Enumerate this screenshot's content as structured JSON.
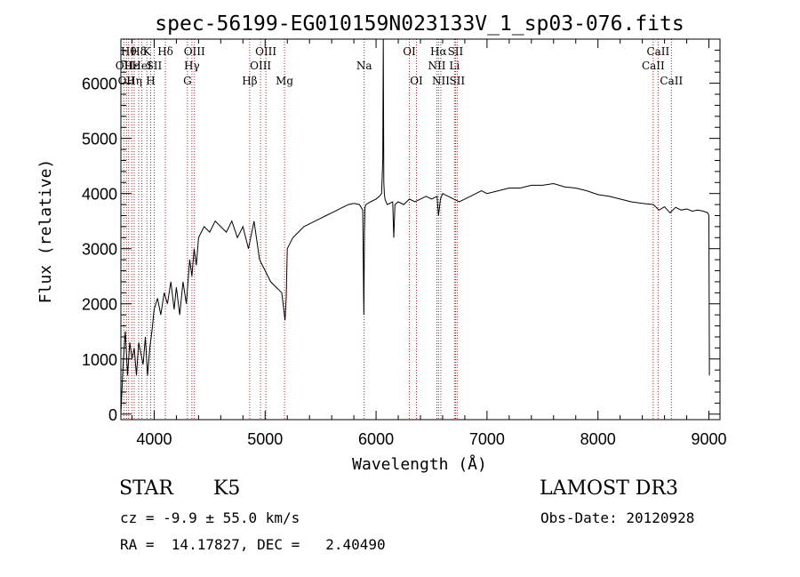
{
  "chart_data": {
    "type": "line",
    "title": "spec-56199-EG010159N023133V_1_sp03-076.fits",
    "xlabel": "Wavelength (Å)",
    "ylabel": "Flux (relative)",
    "xlim": [
      3700,
      9100
    ],
    "ylim": [
      -100,
      6800
    ],
    "xticks": [
      4000,
      5000,
      6000,
      7000,
      8000,
      9000
    ],
    "yticks": [
      0,
      1000,
      2000,
      3000,
      4000,
      5000,
      6000
    ],
    "grid": false,
    "line_color": "#000000",
    "marker_color": "#b22222",
    "series": [
      {
        "name": "flux",
        "x": [
          3700,
          3720,
          3740,
          3760,
          3780,
          3800,
          3820,
          3840,
          3860,
          3880,
          3900,
          3920,
          3940,
          3960,
          3980,
          4000,
          4030,
          4060,
          4090,
          4120,
          4150,
          4180,
          4200,
          4230,
          4260,
          4290,
          4320,
          4340,
          4360,
          4380,
          4400,
          4450,
          4500,
          4550,
          4600,
          4650,
          4700,
          4750,
          4800,
          4850,
          4900,
          4950,
          5000,
          5050,
          5100,
          5150,
          5180,
          5190,
          5200,
          5250,
          5300,
          5350,
          5400,
          5450,
          5500,
          5550,
          5600,
          5650,
          5700,
          5750,
          5800,
          5850,
          5880,
          5890,
          5895,
          5900,
          5910,
          5950,
          6000,
          6030,
          6050,
          6060,
          6065,
          6070,
          6075,
          6080,
          6090,
          6100,
          6150,
          6160,
          6170,
          6200,
          6250,
          6300,
          6350,
          6400,
          6450,
          6500,
          6550,
          6563,
          6580,
          6600,
          6650,
          6700,
          6750,
          6800,
          6850,
          6900,
          6950,
          7000,
          7100,
          7200,
          7300,
          7400,
          7500,
          7600,
          7700,
          7800,
          7900,
          8000,
          8100,
          8200,
          8300,
          8400,
          8500,
          8550,
          8600,
          8650,
          8700,
          8750,
          8800,
          8850,
          8900,
          8950,
          8990,
          9000,
          9005
        ],
        "values": [
          0,
          900,
          1500,
          700,
          1300,
          1000,
          1200,
          700,
          1300,
          1100,
          900,
          1400,
          700,
          1200,
          1500,
          1900,
          2100,
          1800,
          2200,
          2000,
          2400,
          1900,
          2300,
          1800,
          2400,
          2000,
          2800,
          2500,
          3000,
          2700,
          3200,
          3400,
          3300,
          3500,
          3400,
          3300,
          3500,
          3200,
          3400,
          3000,
          3500,
          2800,
          2600,
          2400,
          2300,
          2200,
          1700,
          2100,
          3000,
          3200,
          3300,
          3400,
          3450,
          3500,
          3550,
          3600,
          3650,
          3700,
          3750,
          3800,
          3820,
          3800,
          3700,
          1800,
          3300,
          3750,
          3800,
          3850,
          3900,
          3950,
          4000,
          4600,
          6800,
          4200,
          4000,
          3900,
          3850,
          3800,
          3850,
          3200,
          3800,
          3850,
          3800,
          3900,
          3850,
          3900,
          3950,
          3900,
          3950,
          3600,
          3900,
          4000,
          3950,
          3900,
          3850,
          3900,
          3950,
          4000,
          4050,
          4000,
          4050,
          4100,
          4100,
          4150,
          4150,
          4180,
          4120,
          4100,
          4050,
          3980,
          3950,
          3900,
          3850,
          3820,
          3800,
          3700,
          3760,
          3650,
          3750,
          3700,
          3720,
          3680,
          3700,
          3680,
          3650,
          3600,
          700
        ]
      }
    ],
    "line_markers": [
      {
        "wavelength": 3727,
        "label": "OII",
        "row": 2
      },
      {
        "wavelength": 3750,
        "label": "OII",
        "row": 3
      },
      {
        "wavelength": 3770,
        "label": "Hθ",
        "row": 1
      },
      {
        "wavelength": 3798,
        "label": "Hε",
        "row": 2
      },
      {
        "wavelength": 3820,
        "label": "Hη",
        "row": 3
      },
      {
        "wavelength": 3860,
        "label": "Hδ",
        "row": 1
      },
      {
        "wavelength": 3889,
        "label": "HeI",
        "row": 2
      },
      {
        "wavelength": 3934,
        "label": "K",
        "row": 1
      },
      {
        "wavelength": 3968,
        "label": "H",
        "row": 3
      },
      {
        "wavelength": 4000,
        "label": "SII",
        "row": 2
      },
      {
        "wavelength": 4101,
        "label": "Hδ",
        "row": 1
      },
      {
        "wavelength": 4300,
        "label": "G",
        "row": 3
      },
      {
        "wavelength": 4340,
        "label": "Hγ",
        "row": 2
      },
      {
        "wavelength": 4363,
        "label": "OIII",
        "row": 1
      },
      {
        "wavelength": 4861,
        "label": "Hβ",
        "row": 3
      },
      {
        "wavelength": 4959,
        "label": "OIII",
        "row": 2
      },
      {
        "wavelength": 5007,
        "label": "OIII",
        "row": 1
      },
      {
        "wavelength": 5175,
        "label": "Mg",
        "row": 3
      },
      {
        "wavelength": 5893,
        "label": "Na",
        "row": 2
      },
      {
        "wavelength": 6300,
        "label": "OI",
        "row": 1
      },
      {
        "wavelength": 6364,
        "label": "OI",
        "row": 3
      },
      {
        "wavelength": 6548,
        "label": "NII",
        "row": 2
      },
      {
        "wavelength": 6563,
        "label": "Hα",
        "row": 1
      },
      {
        "wavelength": 6584,
        "label": "NII",
        "row": 3
      },
      {
        "wavelength": 6707,
        "label": "Li",
        "row": 2
      },
      {
        "wavelength": 6716,
        "label": "SII",
        "row": 1
      },
      {
        "wavelength": 6731,
        "label": "SII",
        "row": 3
      },
      {
        "wavelength": 8498,
        "label": "CaII",
        "row": 2
      },
      {
        "wavelength": 8542,
        "label": "CaII",
        "row": 1
      },
      {
        "wavelength": 8662,
        "label": "CaII",
        "row": 3
      }
    ]
  },
  "info": {
    "object_class": "STAR",
    "subclass": "K5",
    "survey": "LAMOST DR3",
    "redshift_line": "cz = -9.9 ± 55.0 km/s",
    "obs_date_line": "Obs-Date: 20120928",
    "coords_line": "RA =  14.17827, DEC =   2.40490"
  }
}
